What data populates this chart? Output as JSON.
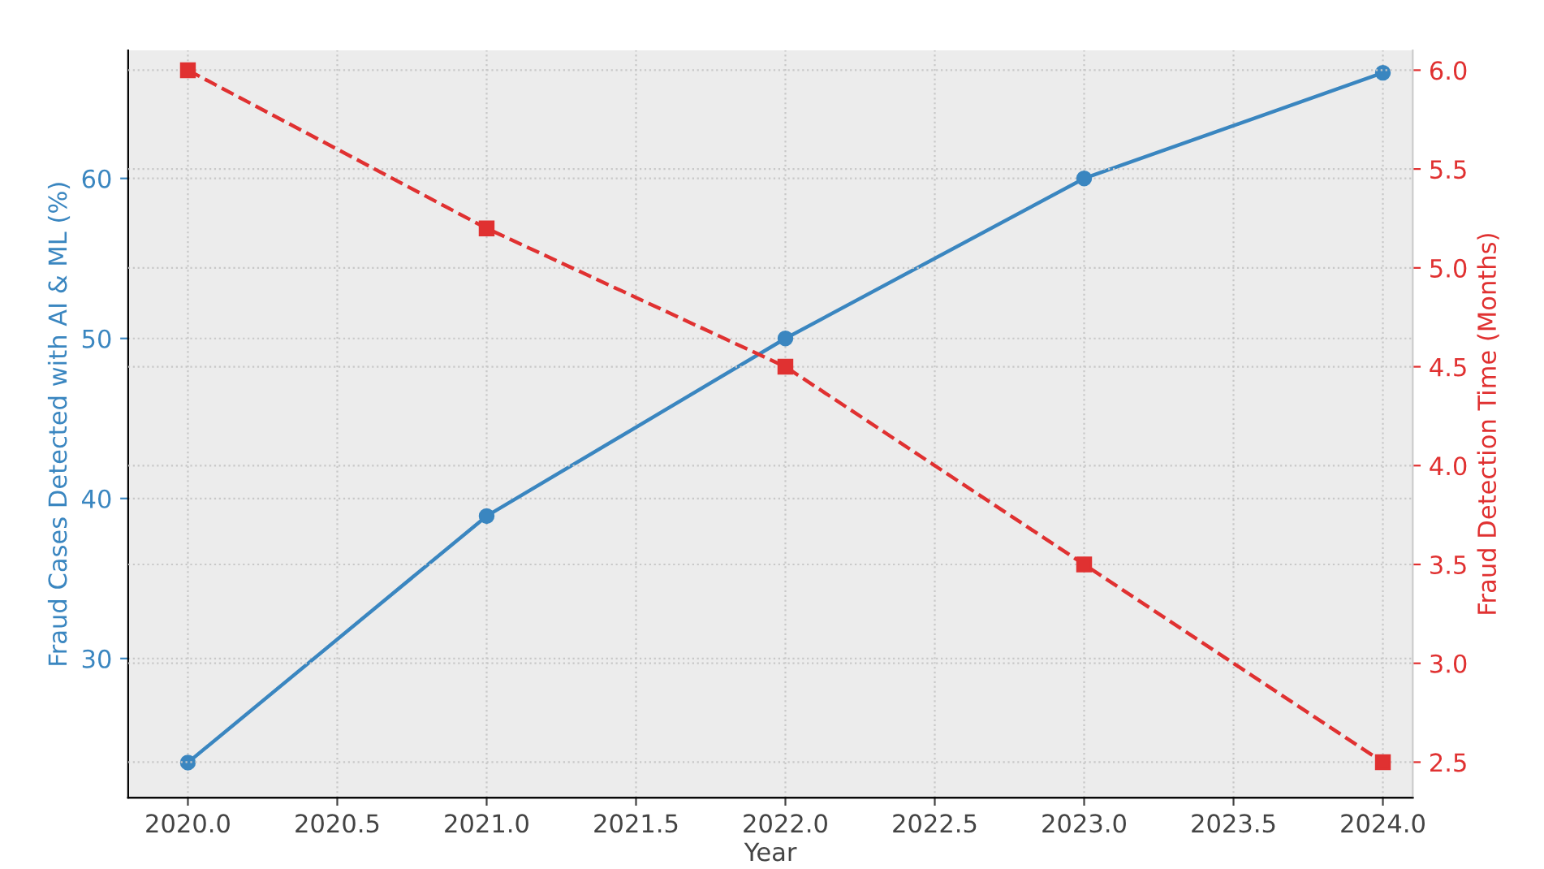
{
  "chart_data": {
    "type": "line",
    "xlabel": "Year",
    "ylabel": "Fraud Cases Detected with AI & ML (%)",
    "y2label": "Fraud Detection Time (Months)",
    "x": [
      2020,
      2021,
      2022,
      2023,
      2024
    ],
    "series": [
      {
        "color": "#3a86c0",
        "values": [
          23.5,
          38.9,
          50,
          60,
          66.6
        ],
        "marker": "circle",
        "line_style": "solid"
      },
      {
        "color": "#e03131",
        "values": [
          6.0,
          5.2,
          4.5,
          3.5,
          2.5
        ],
        "marker": "square",
        "line_style": "dashed",
        "axis": "y2"
      }
    ],
    "xlim": [
      2019.8,
      2024.1
    ],
    "xticks": [
      {
        "value": 2020,
        "label": "2020.0"
      },
      {
        "value": 2020.5,
        "label": "2020.5"
      },
      {
        "value": 2021,
        "label": "2021.0"
      },
      {
        "value": 2021.5,
        "label": "2021.5"
      },
      {
        "value": 2022,
        "label": "2022.0"
      },
      {
        "value": 2022.5,
        "label": "2022.5"
      },
      {
        "value": 2023,
        "label": "2023.0"
      },
      {
        "value": 2023.5,
        "label": "2023.5"
      },
      {
        "value": 2024,
        "label": "2024.0"
      }
    ],
    "ylim": [
      21.3,
      68
    ],
    "yticks": [
      30,
      40,
      50,
      60
    ],
    "y2lim": [
      2.32,
      6.1
    ],
    "y2ticks": [
      {
        "value": 2.5,
        "label": "2.5"
      },
      {
        "value": 3.0,
        "label": "3.0"
      },
      {
        "value": 3.5,
        "label": "3.5"
      },
      {
        "value": 4.0,
        "label": "4.0"
      },
      {
        "value": 4.5,
        "label": "4.5"
      },
      {
        "value": 5.0,
        "label": "5.0"
      },
      {
        "value": 5.5,
        "label": "5.5"
      },
      {
        "value": 6.0,
        "label": "6.0"
      }
    ],
    "grid": true
  }
}
